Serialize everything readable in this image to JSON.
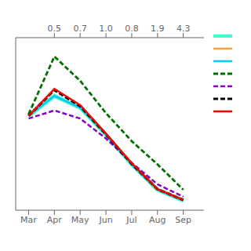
{
  "chart_data": {
    "type": "line",
    "categories": [
      "Mar",
      "Apr",
      "May",
      "Jun",
      "Jul",
      "Aug",
      "Sep"
    ],
    "xlim": [
      -0.5,
      6.8
    ],
    "x2lim": [
      -0.5,
      6.8
    ],
    "x2ticks": [
      {
        "value": 1,
        "label": "0.5"
      },
      {
        "value": 2,
        "label": "0.7"
      },
      {
        "value": 3,
        "label": "1.0"
      },
      {
        "value": 4,
        "label": "0.8"
      },
      {
        "value": 5,
        "label": "1.9"
      },
      {
        "value": 6,
        "label": "4.3"
      }
    ],
    "ylim": [
      130,
      450
    ],
    "tick_labels": "x",
    "legend": "right",
    "series": [
      {
        "color": "#40ffcc",
        "line_style": "solid",
        "values": [
          305,
          342,
          320,
          270,
          215,
          168,
          148
        ]
      },
      {
        "color": "#ffa040",
        "line_style": "solid",
        "values": [
          305,
          342,
          320,
          270,
          215,
          168,
          148
        ]
      },
      {
        "color": "#00cfff",
        "line_style": "solid",
        "values": [
          305,
          342,
          320,
          270,
          215,
          168,
          148
        ]
      },
      {
        "color": "#007000",
        "line_style": "dashed",
        "values": [
          308,
          415,
          370,
          310,
          258,
          215,
          168
        ]
      },
      {
        "color": "#8800cc",
        "line_style": "dashed",
        "values": [
          300,
          315,
          300,
          263,
          218,
          178,
          155
        ]
      },
      {
        "color": "#000000",
        "line_style": "dashed",
        "values": [
          305,
          353,
          323,
          271,
          216,
          169,
          149
        ]
      },
      {
        "color": "#ff0000",
        "line_style": "solid",
        "values": [
          305,
          355,
          325,
          272,
          217,
          169,
          149
        ]
      }
    ]
  }
}
